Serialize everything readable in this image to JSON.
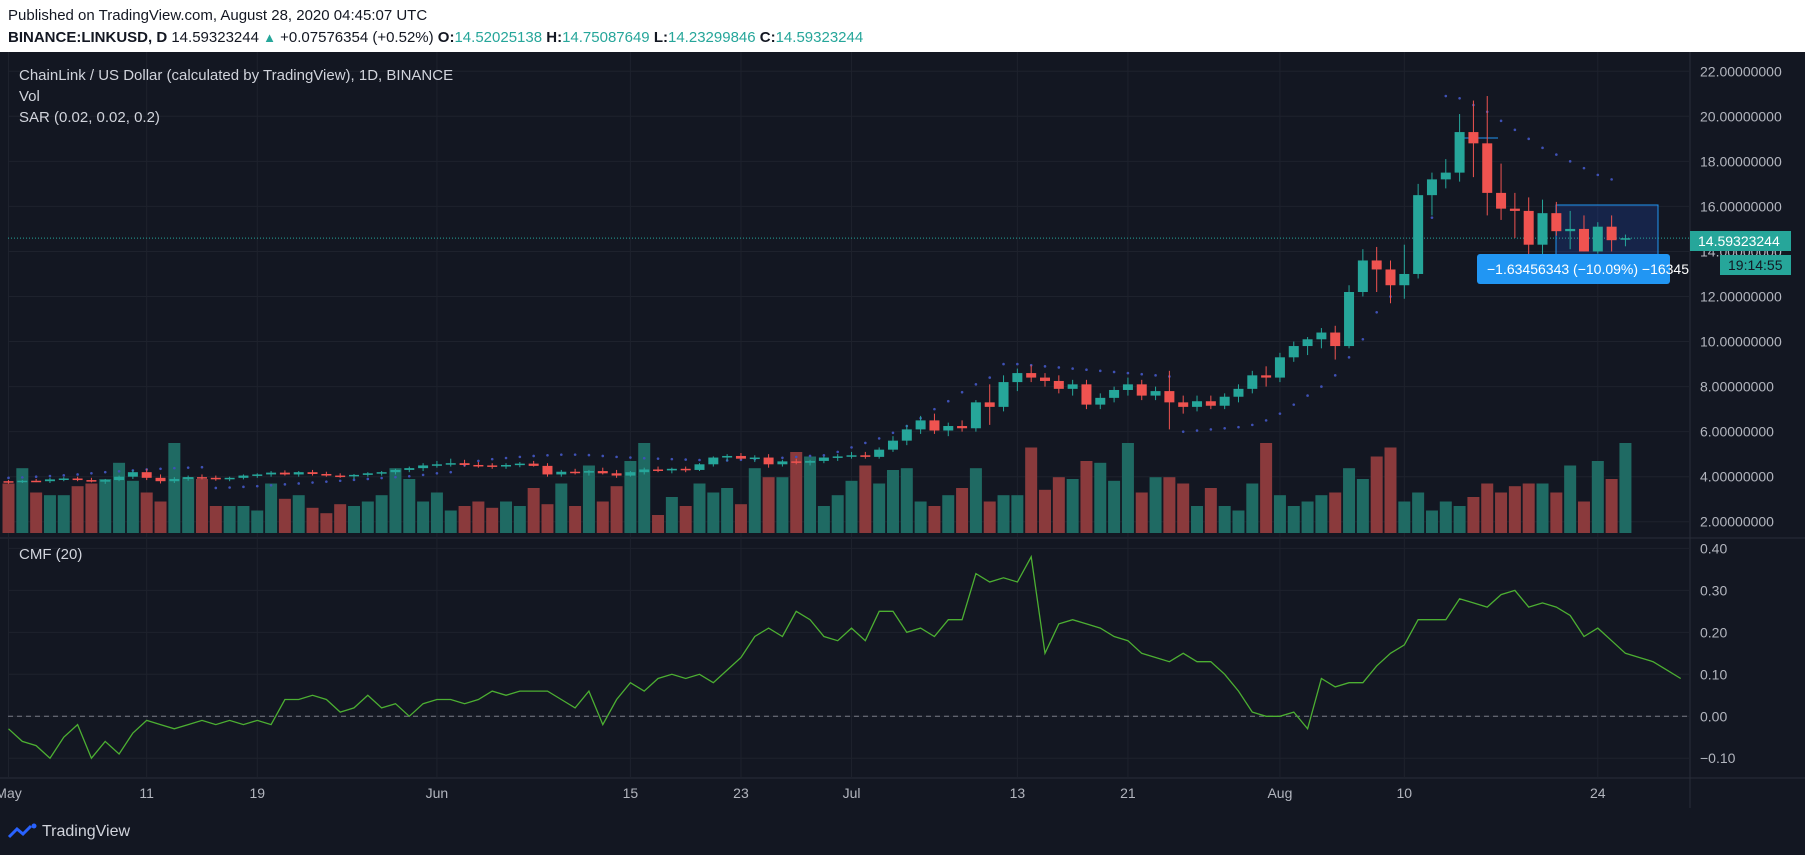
{
  "header": {
    "published": "Published on TradingView.com, August 28, 2020 04:45:07 UTC",
    "symbol": "BINANCE:LINKUSD, D",
    "last": "14.59323244",
    "change": "+0.07576354 (+0.52%)",
    "o_label": "O:",
    "o": "14.52025138",
    "h_label": "H:",
    "h": "14.75087649",
    "l_label": "L:",
    "l": "14.23299846",
    "c_label": "C:",
    "c": "14.59323244"
  },
  "legend": {
    "title": "ChainLink / US Dollar (calculated by TradingView), 1D, BINANCE",
    "vol": "Vol",
    "sar": "SAR (0.02, 0.02, 0.2)",
    "cmf": "CMF (20)"
  },
  "price_tag": "14.59323244",
  "countdown": "19:14:55",
  "measure_label": "−1.63456343 (−10.09%) −16345",
  "branding": "TradingView",
  "colors": {
    "up": "#26a69a",
    "down": "#ef5350",
    "vol_up": "#1f6a63",
    "vol_down": "#8a3a3c",
    "cmf_line": "#4caf32",
    "sar_dots": "#3f51b5",
    "bg": "#131722",
    "measure": "#2196f3"
  },
  "chart_data": [
    {
      "type": "candlestick",
      "title": "ChainLink / US Dollar (calculated by TradingView), 1D, BINANCE",
      "y_ticks": [
        2,
        4,
        6,
        8,
        10,
        12,
        14,
        16,
        18,
        20,
        22
      ],
      "y_tick_labels": [
        "2.00000000",
        "4.00000000",
        "6.00000000",
        "8.00000000",
        "10.00000000",
        "12.00000000",
        "14.00000000",
        "16.00000000",
        "18.00000000",
        "20.00000000",
        "22.00000000"
      ],
      "ylim": [
        1.5,
        22.5
      ],
      "x_tick_labels": [
        "May",
        "11",
        "19",
        "Jun",
        "15",
        "23",
        "Jul",
        "13",
        "21",
        "Aug",
        "10",
        "24"
      ],
      "x_tick_days": [
        0,
        10,
        18,
        31,
        45,
        53,
        61,
        73,
        81,
        92,
        101,
        115
      ],
      "start_date": "2020-05-01",
      "candles": [
        [
          3.8,
          3.85,
          3.7,
          3.78
        ],
        [
          3.78,
          3.86,
          3.72,
          3.82
        ],
        [
          3.82,
          3.9,
          3.76,
          3.8
        ],
        [
          3.8,
          3.95,
          3.72,
          3.88
        ],
        [
          3.88,
          3.98,
          3.8,
          3.92
        ],
        [
          3.92,
          4.0,
          3.8,
          3.85
        ],
        [
          3.85,
          3.95,
          3.75,
          3.78
        ],
        [
          3.78,
          3.9,
          3.68,
          3.85
        ],
        [
          3.85,
          4.05,
          3.8,
          4.0
        ],
        [
          4.0,
          4.3,
          3.9,
          4.2
        ],
        [
          4.2,
          4.35,
          3.85,
          3.95
        ],
        [
          3.95,
          4.1,
          3.7,
          3.8
        ],
        [
          3.8,
          3.98,
          3.72,
          3.9
        ],
        [
          3.9,
          4.05,
          3.82,
          3.98
        ],
        [
          3.98,
          4.1,
          3.88,
          3.95
        ],
        [
          3.95,
          4.05,
          3.82,
          3.9
        ],
        [
          3.9,
          4.0,
          3.8,
          3.95
        ],
        [
          3.95,
          4.1,
          3.88,
          4.05
        ],
        [
          4.05,
          4.15,
          3.95,
          4.1
        ],
        [
          4.1,
          4.25,
          4.0,
          4.18
        ],
        [
          4.18,
          4.28,
          4.05,
          4.1
        ],
        [
          4.1,
          4.25,
          4.0,
          4.2
        ],
        [
          4.2,
          4.3,
          4.05,
          4.12
        ],
        [
          4.12,
          4.22,
          4.0,
          4.05
        ],
        [
          4.05,
          4.15,
          3.95,
          4.02
        ],
        [
          4.02,
          4.12,
          3.9,
          4.08
        ],
        [
          4.08,
          4.2,
          4.0,
          4.15
        ],
        [
          4.15,
          4.25,
          4.05,
          4.2
        ],
        [
          4.2,
          4.35,
          4.1,
          4.3
        ],
        [
          4.3,
          4.45,
          4.2,
          4.38
        ],
        [
          4.38,
          4.6,
          4.25,
          4.5
        ],
        [
          4.5,
          4.7,
          4.4,
          4.55
        ],
        [
          4.55,
          4.8,
          4.45,
          4.6
        ],
        [
          4.6,
          4.75,
          4.45,
          4.52
        ],
        [
          4.52,
          4.65,
          4.4,
          4.5
        ],
        [
          4.5,
          4.6,
          4.35,
          4.45
        ],
        [
          4.45,
          4.6,
          4.35,
          4.52
        ],
        [
          4.52,
          4.65,
          4.42,
          4.58
        ],
        [
          4.58,
          4.7,
          4.45,
          4.48
        ],
        [
          4.48,
          4.6,
          4.0,
          4.1
        ],
        [
          4.1,
          4.3,
          4.0,
          4.22
        ],
        [
          4.22,
          4.35,
          4.1,
          4.18
        ],
        [
          4.18,
          4.3,
          4.05,
          4.25
        ],
        [
          4.25,
          4.4,
          4.1,
          4.15
        ],
        [
          4.15,
          4.3,
          3.95,
          4.05
        ],
        [
          4.05,
          4.25,
          4.0,
          4.2
        ],
        [
          4.2,
          4.4,
          4.1,
          4.32
        ],
        [
          4.32,
          4.45,
          4.2,
          4.28
        ],
        [
          4.28,
          4.4,
          4.15,
          4.35
        ],
        [
          4.35,
          4.45,
          4.2,
          4.3
        ],
        [
          4.3,
          4.6,
          4.25,
          4.55
        ],
        [
          4.55,
          4.9,
          4.45,
          4.85
        ],
        [
          4.85,
          5.0,
          4.7,
          4.92
        ],
        [
          4.92,
          5.05,
          4.75,
          4.8
        ],
        [
          4.8,
          4.95,
          4.65,
          4.85
        ],
        [
          4.85,
          5.0,
          4.4,
          4.55
        ],
        [
          4.55,
          4.75,
          4.45,
          4.68
        ],
        [
          4.68,
          4.8,
          4.55,
          4.62
        ],
        [
          4.62,
          4.75,
          4.5,
          4.7
        ],
        [
          4.7,
          4.9,
          4.6,
          4.85
        ],
        [
          4.85,
          5.0,
          4.7,
          4.9
        ],
        [
          4.9,
          5.1,
          4.8,
          4.95
        ],
        [
          4.95,
          5.1,
          4.8,
          4.88
        ],
        [
          4.88,
          5.3,
          4.8,
          5.2
        ],
        [
          5.2,
          5.8,
          5.1,
          5.6
        ],
        [
          5.6,
          6.3,
          5.4,
          6.1
        ],
        [
          6.1,
          6.7,
          5.9,
          6.5
        ],
        [
          6.5,
          6.8,
          5.9,
          6.05
        ],
        [
          6.05,
          6.4,
          5.8,
          6.25
        ],
        [
          6.25,
          6.5,
          6.0,
          6.15
        ],
        [
          6.15,
          7.4,
          6.0,
          7.3
        ],
        [
          7.3,
          8.1,
          6.3,
          7.1
        ],
        [
          7.1,
          8.5,
          6.9,
          8.2
        ],
        [
          8.2,
          8.8,
          7.8,
          8.6
        ],
        [
          8.6,
          8.95,
          8.2,
          8.4
        ],
        [
          8.4,
          8.6,
          8.0,
          8.25
        ],
        [
          8.25,
          8.5,
          7.7,
          7.9
        ],
        [
          7.9,
          8.3,
          7.6,
          8.1
        ],
        [
          8.1,
          8.3,
          7.0,
          7.2
        ],
        [
          7.2,
          7.7,
          7.0,
          7.5
        ],
        [
          7.5,
          8.0,
          7.3,
          7.85
        ],
        [
          7.85,
          8.4,
          7.6,
          8.1
        ],
        [
          8.1,
          8.3,
          7.4,
          7.6
        ],
        [
          7.6,
          8.0,
          7.4,
          7.8
        ],
        [
          7.8,
          8.7,
          6.1,
          7.3
        ],
        [
          7.3,
          7.6,
          6.8,
          7.1
        ],
        [
          7.1,
          7.6,
          6.9,
          7.35
        ],
        [
          7.35,
          7.6,
          7.0,
          7.15
        ],
        [
          7.15,
          7.7,
          7.0,
          7.55
        ],
        [
          7.55,
          8.1,
          7.3,
          7.9
        ],
        [
          7.9,
          8.7,
          7.7,
          8.5
        ],
        [
          8.5,
          8.9,
          8.0,
          8.4
        ],
        [
          8.4,
          9.5,
          8.2,
          9.3
        ],
        [
          9.3,
          10.0,
          9.1,
          9.8
        ],
        [
          9.8,
          10.2,
          9.4,
          10.1
        ],
        [
          10.1,
          10.6,
          9.7,
          10.4
        ],
        [
          10.4,
          10.7,
          9.2,
          9.8
        ],
        [
          9.8,
          12.5,
          9.7,
          12.2
        ],
        [
          12.2,
          14.1,
          12.0,
          13.6
        ],
        [
          13.6,
          14.2,
          12.2,
          13.2
        ],
        [
          13.2,
          13.6,
          11.7,
          12.5
        ],
        [
          12.5,
          14.3,
          11.9,
          13.0
        ],
        [
          13.0,
          17.0,
          12.8,
          16.5
        ],
        [
          16.5,
          17.5,
          15.6,
          17.2
        ],
        [
          17.2,
          18.1,
          16.8,
          17.5
        ],
        [
          17.5,
          20.1,
          17.1,
          19.3
        ],
        [
          19.3,
          20.7,
          17.3,
          18.8
        ],
        [
          18.8,
          20.9,
          15.6,
          16.6
        ],
        [
          16.6,
          17.9,
          15.4,
          15.9
        ],
        [
          15.9,
          16.6,
          14.6,
          15.8
        ],
        [
          15.8,
          16.4,
          13.8,
          14.3
        ],
        [
          14.3,
          16.3,
          13.8,
          15.7
        ],
        [
          15.7,
          16.2,
          14.7,
          14.9
        ],
        [
          14.9,
          15.8,
          14.1,
          15.0
        ],
        [
          15.0,
          15.6,
          14.0,
          14.0
        ],
        [
          14.0,
          15.3,
          13.9,
          15.1
        ],
        [
          15.1,
          15.6,
          14.0,
          14.5
        ],
        [
          14.52,
          14.75,
          14.23,
          14.59
        ]
      ],
      "sar": [
        3.95,
        3.97,
        4.0,
        4.03,
        4.06,
        4.1,
        4.15,
        4.2,
        4.24,
        4.28,
        4.32,
        4.35,
        4.38,
        4.4,
        4.42,
        3.5,
        3.52,
        3.55,
        3.58,
        3.62,
        3.66,
        3.7,
        3.74,
        3.78,
        3.82,
        3.86,
        3.9,
        3.94,
        3.98,
        4.02,
        4.08,
        4.15,
        4.2,
        4.5,
        4.7,
        4.78,
        4.83,
        4.88,
        4.92,
        4.95,
        4.98,
        4.98,
        4.96,
        4.92,
        4.88,
        4.85,
        4.82,
        4.8,
        4.78,
        4.76,
        4.74,
        4.72,
        4.72,
        4.75,
        4.78,
        4.8,
        4.84,
        4.88,
        4.92,
        4.95,
        5.1,
        5.3,
        5.5,
        5.7,
        5.95,
        6.25,
        6.6,
        7.0,
        7.35,
        7.75,
        8.1,
        8.4,
        9.0,
        9.0,
        8.95,
        8.9,
        8.85,
        8.8,
        8.75,
        8.7,
        8.65,
        8.6,
        8.55,
        8.5,
        8.45,
        6.0,
        6.05,
        6.1,
        6.15,
        6.2,
        6.3,
        6.5,
        6.8,
        7.2,
        7.6,
        8.0,
        8.5,
        9.3,
        10.1,
        11.3,
        12.0,
        12.8,
        14.0,
        15.5,
        20.9,
        20.8,
        20.5,
        20.2,
        19.8,
        19.4,
        19.0,
        18.6,
        18.3,
        18.0,
        17.7,
        17.4,
        17.2
      ],
      "volume_up": [
        0.72,
        0.42,
        0.42,
        0.6,
        0.78,
        0.58,
        1.0,
        0.62,
        0.3,
        0.3,
        0.25,
        0.55,
        0.42,
        0.3,
        0.35,
        0.42,
        0.72,
        0.6,
        0.35,
        0.45,
        0.25,
        0.35,
        0.3,
        0.55,
        0.75,
        0.8,
        1.0,
        0.4,
        0.55,
        0.45,
        0.5,
        0.72,
        0.62,
        0.85,
        0.3,
        0.42,
        0.58,
        0.55,
        0.7,
        0.72,
        0.35,
        0.42
      ],
      "volume_down": [
        0.55,
        0.45,
        0.52,
        0.55,
        0.45,
        0.35,
        0.6,
        0.3,
        0.38,
        0.28,
        0.22,
        0.32,
        0.3,
        0.35,
        0.28,
        0.5,
        0.32,
        0.3,
        0.35,
        0.52,
        0.2,
        0.3,
        0.32,
        0.62,
        0.9,
        0.75,
        0.3,
        0.5,
        0.35,
        0.95,
        0.48,
        0.62,
        0.8,
        0.45,
        0.62,
        0.55,
        0.5,
        1.0,
        0.45,
        0.85,
        0.95,
        0.4
      ]
    },
    {
      "type": "line",
      "title": "CMF (20)",
      "y_ticks": [
        -0.1,
        0.0,
        0.1,
        0.2,
        0.3,
        0.4
      ],
      "y_tick_labels": [
        "−0.10",
        "0.00",
        "0.10",
        "0.20",
        "0.30",
        "0.40"
      ],
      "ylim": [
        -0.14,
        0.42
      ],
      "zero_line": true,
      "values": [
        -0.03,
        -0.06,
        -0.07,
        -0.1,
        -0.05,
        -0.02,
        -0.1,
        -0.06,
        -0.09,
        -0.04,
        -0.01,
        -0.02,
        -0.03,
        -0.02,
        -0.01,
        -0.02,
        -0.01,
        -0.02,
        -0.01,
        -0.02,
        0.04,
        0.04,
        0.05,
        0.04,
        0.01,
        0.02,
        0.05,
        0.02,
        0.03,
        0.0,
        0.03,
        0.04,
        0.04,
        0.03,
        0.04,
        0.06,
        0.05,
        0.06,
        0.06,
        0.06,
        0.04,
        0.02,
        0.06,
        -0.02,
        0.04,
        0.08,
        0.06,
        0.09,
        0.1,
        0.09,
        0.1,
        0.08,
        0.11,
        0.14,
        0.19,
        0.21,
        0.19,
        0.25,
        0.23,
        0.19,
        0.18,
        0.21,
        0.18,
        0.25,
        0.25,
        0.2,
        0.21,
        0.19,
        0.23,
        0.23,
        0.34,
        0.32,
        0.33,
        0.32,
        0.38,
        0.15,
        0.22,
        0.23,
        0.22,
        0.21,
        0.19,
        0.18,
        0.15,
        0.14,
        0.13,
        0.15,
        0.13,
        0.13,
        0.1,
        0.06,
        0.01,
        0.0,
        0.0,
        0.01,
        -0.03,
        0.09,
        0.07,
        0.08,
        0.08,
        0.12,
        0.15,
        0.17,
        0.23,
        0.23,
        0.23,
        0.28,
        0.27,
        0.26,
        0.29,
        0.3,
        0.26,
        0.27,
        0.26,
        0.24,
        0.19,
        0.21,
        0.18,
        0.15,
        0.14,
        0.13,
        0.11,
        0.09
      ]
    }
  ]
}
